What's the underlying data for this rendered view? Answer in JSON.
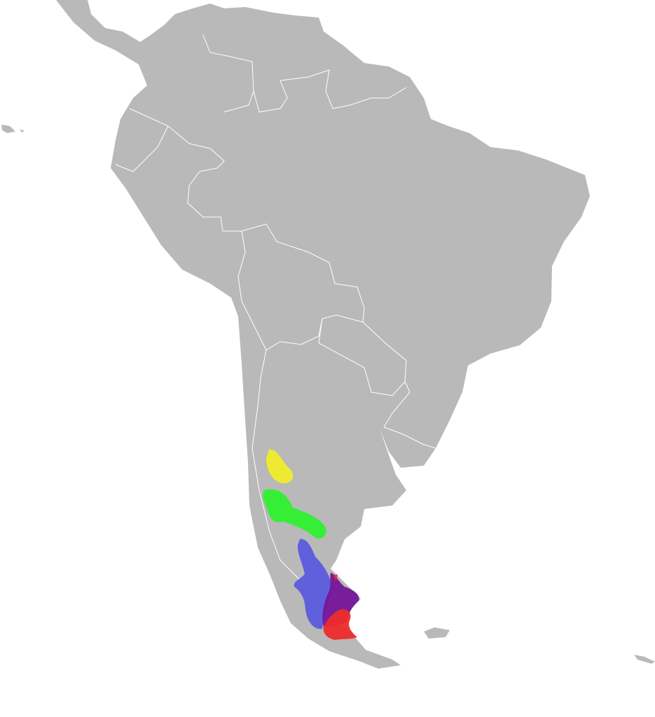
{
  "map": {
    "colors": {
      "background": "#ffffff",
      "land": "#b9b9b9",
      "borders": "#ffffff",
      "range_yellow": "#f0ec2a",
      "range_green": "#2ff02f",
      "range_blue": "#5b5bdd",
      "range_purple": "#751599",
      "range_red": "#ee2b2b"
    },
    "ranges": [
      "yellow",
      "green",
      "blue",
      "purple",
      "red"
    ]
  }
}
